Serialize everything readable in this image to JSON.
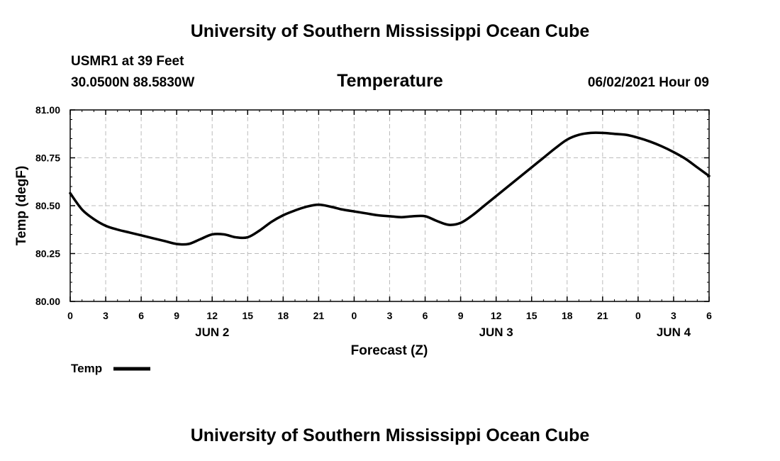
{
  "page": {
    "top_title": "University of Southern Mississippi Ocean Cube",
    "bottom_title": "University of Southern Mississippi Ocean Cube",
    "station": "USMR1 at 39 Feet",
    "coords": "30.0500N  88.5830W",
    "datetime": "06/02/2021 Hour 09"
  },
  "chart_data": {
    "type": "line",
    "title": "Temperature",
    "xlabel": "Forecast (Z)",
    "ylabel": "Temp (degF)",
    "ylim": [
      80.0,
      81.0
    ],
    "yticks": [
      "80.00",
      "80.25",
      "80.50",
      "80.75",
      "81.00"
    ],
    "xlim": [
      0,
      54
    ],
    "xtick_hours": [
      0,
      3,
      6,
      9,
      12,
      15,
      18,
      21,
      24,
      27,
      30,
      33,
      36,
      39,
      42,
      45,
      48,
      51,
      54
    ],
    "xtick_labels": [
      "0",
      "3",
      "6",
      "9",
      "12",
      "15",
      "18",
      "21",
      "0",
      "3",
      "6",
      "9",
      "12",
      "15",
      "18",
      "21",
      "0",
      "3",
      "6"
    ],
    "day_labels": [
      {
        "hour": 12,
        "label": "JUN 2"
      },
      {
        "hour": 36,
        "label": "JUN 3"
      },
      {
        "hour": 51,
        "label": "JUN 4"
      }
    ],
    "grid": true,
    "legend": "bottom-left",
    "colors": {
      "line": "#000000",
      "grid": "#bbbbbb"
    },
    "series": [
      {
        "name": "Temp",
        "x": [
          0,
          1,
          2,
          3,
          4,
          5,
          6,
          7,
          8,
          9,
          10,
          11,
          12,
          13,
          14,
          15,
          16,
          17,
          18,
          19,
          20,
          21,
          22,
          23,
          24,
          25,
          26,
          27,
          28,
          29,
          30,
          31,
          32,
          33,
          34,
          35,
          36,
          37,
          38,
          39,
          40,
          41,
          42,
          43,
          44,
          45,
          46,
          47,
          48,
          49,
          50,
          51,
          52,
          53,
          54
        ],
        "values": [
          80.565,
          80.48,
          80.43,
          80.395,
          80.375,
          80.36,
          80.345,
          80.33,
          80.315,
          80.3,
          80.3,
          80.325,
          80.35,
          80.35,
          80.335,
          80.335,
          80.37,
          80.415,
          80.45,
          80.475,
          80.495,
          80.505,
          80.495,
          80.48,
          80.47,
          80.46,
          80.45,
          80.445,
          80.44,
          80.445,
          80.445,
          80.42,
          80.4,
          80.41,
          80.45,
          80.5,
          80.55,
          80.6,
          80.65,
          80.7,
          80.75,
          80.8,
          80.845,
          80.87,
          80.88,
          80.88,
          80.875,
          80.87,
          80.855,
          80.835,
          80.81,
          80.78,
          80.745,
          80.7,
          80.655
        ]
      }
    ]
  }
}
